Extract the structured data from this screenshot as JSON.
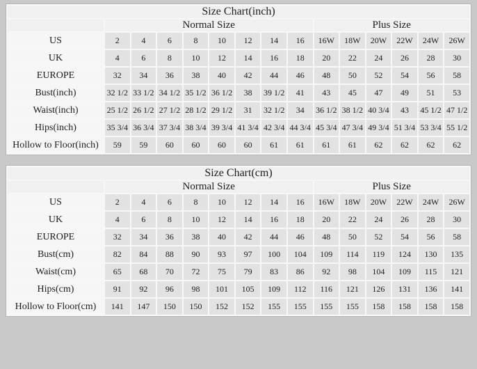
{
  "colors": {
    "page_background": "#c9c9c9",
    "header_cell_background": "#f0f0f0",
    "label_cell_background": "#f6f6f6",
    "data_cell_background": "#e2e2e2",
    "grid_line": "#f7f7f7",
    "text": "#1d1d1d",
    "table_border": "#b5b5b5"
  },
  "tables": [
    {
      "name": "size-chart-inch",
      "title": "Size Chart(inch)",
      "column_groups": [
        {
          "label": "Normal Size",
          "span": 8
        },
        {
          "label": "Plus Size",
          "span": 6
        }
      ],
      "rows": [
        {
          "label": "US",
          "values": [
            "2",
            "4",
            "6",
            "8",
            "10",
            "12",
            "14",
            "16",
            "16W",
            "18W",
            "20W",
            "22W",
            "24W",
            "26W"
          ]
        },
        {
          "label": "UK",
          "values": [
            "4",
            "6",
            "8",
            "10",
            "12",
            "14",
            "16",
            "18",
            "20",
            "22",
            "24",
            "26",
            "28",
            "30"
          ]
        },
        {
          "label": "EUROPE",
          "values": [
            "32",
            "34",
            "36",
            "38",
            "40",
            "42",
            "44",
            "46",
            "48",
            "50",
            "52",
            "54",
            "56",
            "58"
          ]
        },
        {
          "label": "Bust(inch)",
          "values": [
            "32 1/2",
            "33 1/2",
            "34 1/2",
            "35 1/2",
            "36 1/2",
            "38",
            "39 1/2",
            "41",
            "43",
            "45",
            "47",
            "49",
            "51",
            "53"
          ]
        },
        {
          "label": "Waist(inch)",
          "values": [
            "25 1/2",
            "26 1/2",
            "27 1/2",
            "28 1/2",
            "29 1/2",
            "31",
            "32 1/2",
            "34",
            "36 1/2",
            "38 1/2",
            "40 3/4",
            "43",
            "45 1/2",
            "47 1/2"
          ]
        },
        {
          "label": "Hips(inch)",
          "values": [
            "35 3/4",
            "36 3/4",
            "37 3/4",
            "38 3/4",
            "39 3/4",
            "41 3/4",
            "42 3/4",
            "44 3/4",
            "45 3/4",
            "47 3/4",
            "49 3/4",
            "51 3/4",
            "53 3/4",
            "55 1/2"
          ]
        },
        {
          "label": "Hollow to Floor(inch)",
          "values": [
            "59",
            "59",
            "60",
            "60",
            "60",
            "60",
            "61",
            "61",
            "61",
            "61",
            "62",
            "62",
            "62",
            "62"
          ]
        }
      ]
    },
    {
      "name": "size-chart-cm",
      "title": "Size Chart(cm)",
      "column_groups": [
        {
          "label": "Normal Size",
          "span": 8
        },
        {
          "label": "Plus Size",
          "span": 6
        }
      ],
      "rows": [
        {
          "label": "US",
          "values": [
            "2",
            "4",
            "6",
            "8",
            "10",
            "12",
            "14",
            "16",
            "16W",
            "18W",
            "20W",
            "22W",
            "24W",
            "26W"
          ]
        },
        {
          "label": "UK",
          "values": [
            "4",
            "6",
            "8",
            "10",
            "12",
            "14",
            "16",
            "18",
            "20",
            "22",
            "24",
            "26",
            "28",
            "30"
          ]
        },
        {
          "label": "EUROPE",
          "values": [
            "32",
            "34",
            "36",
            "38",
            "40",
            "42",
            "44",
            "46",
            "48",
            "50",
            "52",
            "54",
            "56",
            "58"
          ]
        },
        {
          "label": "Bust(cm)",
          "values": [
            "82",
            "84",
            "88",
            "90",
            "93",
            "97",
            "100",
            "104",
            "109",
            "114",
            "119",
            "124",
            "130",
            "135"
          ]
        },
        {
          "label": "Waist(cm)",
          "values": [
            "65",
            "68",
            "70",
            "72",
            "75",
            "79",
            "83",
            "86",
            "92",
            "98",
            "104",
            "109",
            "115",
            "121"
          ]
        },
        {
          "label": "Hips(cm)",
          "values": [
            "91",
            "92",
            "96",
            "98",
            "101",
            "105",
            "109",
            "112",
            "116",
            "121",
            "126",
            "131",
            "136",
            "141"
          ]
        },
        {
          "label": "Hollow to Floor(cm)",
          "values": [
            "141",
            "147",
            "150",
            "150",
            "152",
            "152",
            "155",
            "155",
            "155",
            "155",
            "158",
            "158",
            "158",
            "158"
          ]
        }
      ]
    }
  ]
}
